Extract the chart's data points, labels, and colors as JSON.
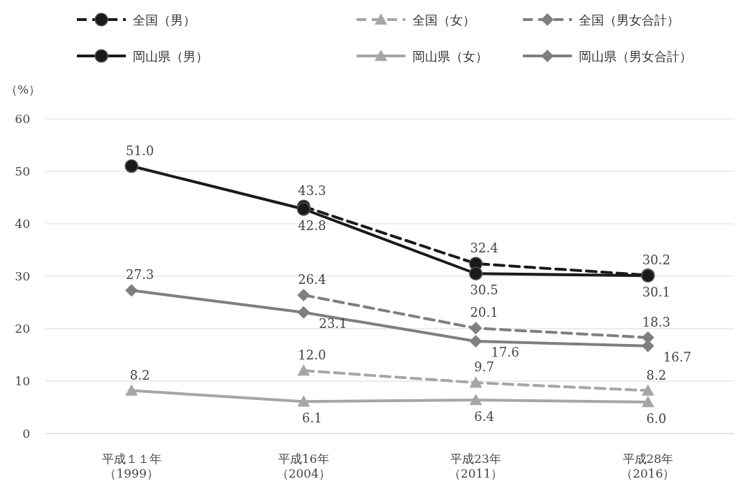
{
  "chart_data": {
    "type": "line",
    "ylabel": "（%）",
    "categories": [
      "平成１１年（1999）",
      "平成16年（2004）",
      "平成23年（2011）",
      "平成28年（2016）"
    ],
    "ylim": [
      0,
      60
    ],
    "yticks": [
      0,
      10,
      20,
      30,
      40,
      50,
      60
    ],
    "grid": "y",
    "legend": "top",
    "series": [
      {
        "name": "全国（男）",
        "color": "#1a1a1a",
        "marker": "circle",
        "line_style": "dashed",
        "values": [
          null,
          43.3,
          32.4,
          30.2
        ],
        "value_labels": [
          null,
          "43.3",
          "32.4",
          "30.2"
        ]
      },
      {
        "name": "全国（女）",
        "color": "#a6a6a6",
        "marker": "triangle",
        "line_style": "dashed",
        "values": [
          null,
          12.0,
          9.7,
          8.2
        ],
        "value_labels": [
          null,
          "12.0",
          "9.7",
          "8.2"
        ]
      },
      {
        "name": "全国（男女合計）",
        "color": "#7f7f7f",
        "marker": "diamond",
        "line_style": "dashed",
        "values": [
          null,
          26.4,
          20.1,
          18.3
        ],
        "value_labels": [
          null,
          "26.4",
          "20.1",
          "18.3"
        ]
      },
      {
        "name": "岡山県（男）",
        "color": "#1a1a1a",
        "marker": "circle",
        "line_style": "solid",
        "values": [
          51.0,
          42.8,
          30.5,
          30.1
        ],
        "value_labels": [
          "51.0",
          "42.8",
          "30.5",
          "30.1"
        ]
      },
      {
        "name": "岡山県（女）",
        "color": "#a6a6a6",
        "marker": "triangle",
        "line_style": "solid",
        "values": [
          8.2,
          6.1,
          6.4,
          6.0
        ],
        "value_labels": [
          "8.2",
          "6.1",
          "6.4",
          "6.0"
        ]
      },
      {
        "name": "岡山県（男女合計）",
        "color": "#7f7f7f",
        "marker": "diamond",
        "line_style": "solid",
        "values": [
          27.3,
          23.1,
          17.6,
          16.7
        ],
        "value_labels": [
          "27.3",
          "23.1",
          "17.6",
          "16.7"
        ]
      }
    ]
  }
}
